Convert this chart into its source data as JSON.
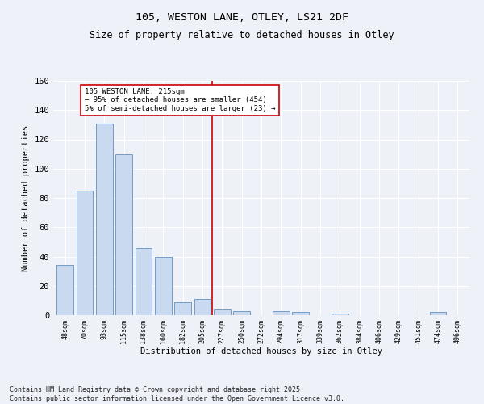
{
  "title1": "105, WESTON LANE, OTLEY, LS21 2DF",
  "title2": "Size of property relative to detached houses in Otley",
  "xlabel": "Distribution of detached houses by size in Otley",
  "ylabel": "Number of detached properties",
  "categories": [
    "48sqm",
    "70sqm",
    "93sqm",
    "115sqm",
    "138sqm",
    "160sqm",
    "182sqm",
    "205sqm",
    "227sqm",
    "250sqm",
    "272sqm",
    "294sqm",
    "317sqm",
    "339sqm",
    "362sqm",
    "384sqm",
    "406sqm",
    "429sqm",
    "451sqm",
    "474sqm",
    "496sqm"
  ],
  "values": [
    34,
    85,
    131,
    110,
    46,
    40,
    9,
    11,
    4,
    3,
    0,
    3,
    2,
    0,
    1,
    0,
    0,
    0,
    0,
    2,
    0
  ],
  "bar_color": "#c9d9f0",
  "bar_edge_color": "#6090c0",
  "vline_x": 7.5,
  "vline_color": "#cc0000",
  "annotation_text": "105 WESTON LANE: 215sqm\n← 95% of detached houses are smaller (454)\n5% of semi-detached houses are larger (23) →",
  "annotation_box_color": "#ffffff",
  "annotation_box_edge": "#cc0000",
  "ylim": [
    0,
    160
  ],
  "yticks": [
    0,
    20,
    40,
    60,
    80,
    100,
    120,
    140,
    160
  ],
  "footer": "Contains HM Land Registry data © Crown copyright and database right 2025.\nContains public sector information licensed under the Open Government Licence v3.0.",
  "bg_color": "#eef2f8",
  "grid_color": "#ffffff"
}
